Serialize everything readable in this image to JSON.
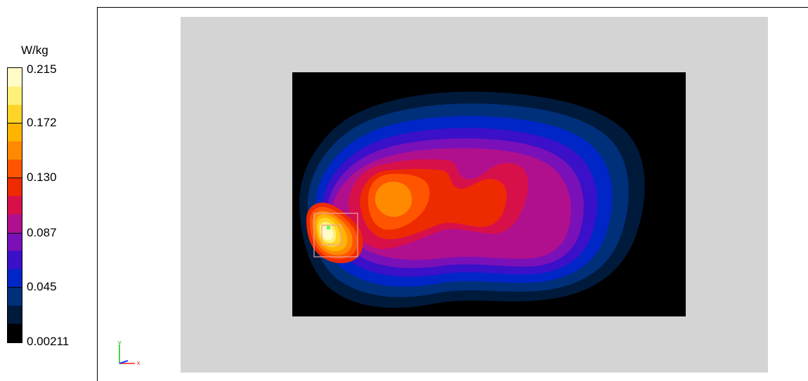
{
  "chart_data": {
    "type": "heatmap",
    "colorbar": {
      "unit": "W/kg",
      "tick_labels": [
        "0.215",
        "0.172",
        "0.130",
        "0.087",
        "0.045",
        "0.00211"
      ],
      "tick_values": [
        0.215,
        0.172,
        0.13,
        0.087,
        0.045,
        0.00211
      ],
      "min": 0.00211,
      "max": 0.215,
      "levels": 15,
      "colors_low_to_high": [
        "#000000",
        "#001a3c",
        "#00307a",
        "#0026c8",
        "#3a10c8",
        "#7a10b8",
        "#b0108e",
        "#d8104a",
        "#ee2a00",
        "#ff5400",
        "#ff8a00",
        "#ffb400",
        "#ffd428",
        "#fff07a",
        "#fffcc8"
      ]
    },
    "axes_indicator": {
      "x_label": "x",
      "y_label": "y",
      "x_color": "#ff2020",
      "y_color": "#10c010",
      "z_color": "#2040ff"
    },
    "background_color": "#d4d4d4",
    "peak_marker_color": "#60ff60",
    "box_color": "#f0a0a0"
  }
}
